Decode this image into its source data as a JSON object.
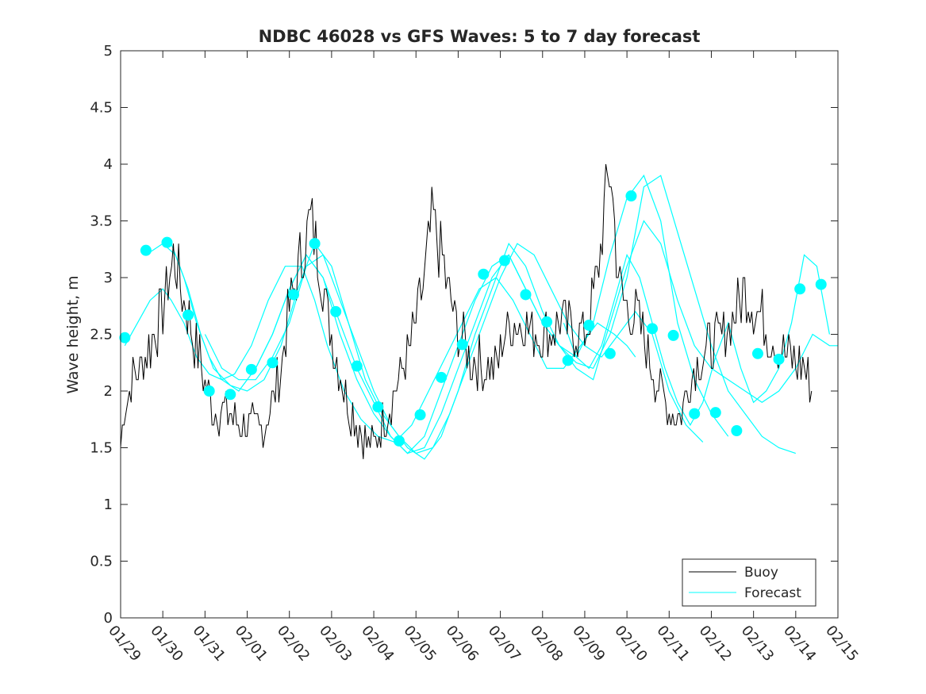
{
  "chart_data": {
    "type": "line",
    "title": "NDBC 46028 vs GFS Waves: 5 to 7 day forecast",
    "xlabel": "",
    "ylabel": "Wave height, m",
    "xlim": [
      0,
      17
    ],
    "ylim": [
      0,
      5
    ],
    "x_ticks": [
      "01/29",
      "01/30",
      "01/31",
      "02/01",
      "02/02",
      "02/03",
      "02/04",
      "02/05",
      "02/06",
      "02/07",
      "02/08",
      "02/09",
      "02/10",
      "02/11",
      "02/12",
      "02/13",
      "02/14",
      "02/15"
    ],
    "y_ticks": [
      "0",
      "0.5",
      "1",
      "1.5",
      "2",
      "2.5",
      "3",
      "3.5",
      "4",
      "4.5",
      "5"
    ],
    "legend": {
      "position": "bottom-right",
      "entries": [
        "Buoy",
        "Forecast"
      ]
    },
    "colors": {
      "buoy": "#000000",
      "forecast": "#00ffff",
      "axis": "#262626"
    },
    "buoy_anchors": {
      "x": [
        0,
        0.1,
        0.3,
        0.6,
        0.9,
        1.1,
        1.25,
        1.45,
        1.7,
        2.0,
        2.2,
        2.5,
        2.8,
        3.0,
        3.2,
        3.4,
        3.6,
        3.8,
        4.0,
        4.3,
        4.5,
        4.7,
        4.9,
        5.1,
        5.3,
        5.5,
        5.8,
        6.0,
        6.3,
        6.6,
        6.8,
        7.0,
        7.2,
        7.4,
        7.6,
        7.8,
        8.0,
        8.3,
        8.6,
        8.9,
        9.1,
        9.3,
        9.55,
        9.8,
        10.1,
        10.4,
        10.7,
        11.0,
        11.3,
        11.6,
        11.8,
        12.0,
        12.3,
        12.6,
        12.9,
        13.1,
        13.3,
        13.5,
        13.6,
        13.8,
        14.0,
        14.3,
        14.6,
        14.8,
        15.1,
        15.4,
        15.6,
        15.9,
        16.2,
        16.4
      ],
      "y": [
        1.5,
        1.9,
        2.1,
        2.3,
        2.6,
        2.9,
        3.2,
        2.9,
        2.5,
        2.1,
        1.85,
        1.8,
        1.75,
        1.7,
        1.65,
        1.7,
        1.9,
        2.2,
        2.7,
        3.2,
        3.5,
        3.2,
        2.7,
        2.3,
        2.0,
        1.8,
        1.55,
        1.5,
        1.8,
        2.1,
        2.3,
        2.6,
        3.0,
        3.5,
        3.2,
        2.8,
        2.5,
        2.3,
        2.2,
        2.2,
        2.5,
        2.6,
        2.6,
        2.5,
        2.5,
        2.6,
        2.55,
        2.5,
        3.0,
        4.0,
        3.0,
        2.7,
        2.6,
        2.2,
        1.9,
        1.8,
        1.8,
        2.1,
        2.2,
        2.3,
        2.4,
        2.5,
        2.7,
        2.9,
        2.7,
        2.5,
        2.4,
        2.3,
        2.2,
        2.0
      ]
    },
    "forecast_lines": [
      {
        "x": [
          0.1,
          0.4,
          0.7,
          1.0,
          1.2,
          1.5,
          1.8,
          2.1,
          2.4,
          2.7,
          3.1,
          3.5,
          3.9,
          4.3,
          4.6,
          4.9,
          5.3,
          5.7,
          6.1,
          6.5,
          6.9,
          7.3,
          7.7,
          8.1,
          8.5,
          8.9,
          9.3,
          9.7,
          10.1,
          10.5,
          10.9,
          11.3,
          11.7,
          12.0,
          12.2
        ],
        "y": [
          2.4,
          2.6,
          2.8,
          2.9,
          2.8,
          2.6,
          2.3,
          2.15,
          2.1,
          2.15,
          2.4,
          2.8,
          3.1,
          3.1,
          2.8,
          2.4,
          2.0,
          1.75,
          1.6,
          1.55,
          1.7,
          2.0,
          2.3,
          2.6,
          2.9,
          3.0,
          2.8,
          2.5,
          2.2,
          2.2,
          2.4,
          2.6,
          2.5,
          2.4,
          2.3
        ]
      },
      {
        "x": [
          0.6,
          1.0,
          1.3,
          1.6,
          1.9,
          2.2,
          2.6,
          3.0,
          3.4,
          3.8,
          4.2,
          4.6,
          5.0,
          5.4,
          5.8,
          6.2,
          6.6,
          7.0,
          7.4,
          7.8,
          8.2,
          8.6,
          9.0,
          9.4,
          9.8,
          10.2,
          10.6,
          11.0,
          11.4,
          11.8,
          12.2,
          12.6,
          13.0,
          13.4,
          13.8
        ],
        "y": [
          3.2,
          3.3,
          3.2,
          2.9,
          2.5,
          2.2,
          2.05,
          2.0,
          2.1,
          2.4,
          2.9,
          3.3,
          3.1,
          2.6,
          2.1,
          1.8,
          1.6,
          1.45,
          1.5,
          1.8,
          2.2,
          2.6,
          3.0,
          3.3,
          3.2,
          2.9,
          2.6,
          2.4,
          2.3,
          2.5,
          2.7,
          2.5,
          2.0,
          1.7,
          1.55
        ]
      },
      {
        "x": [
          1.2,
          1.5,
          1.8,
          2.1,
          2.4,
          2.8,
          3.2,
          3.6,
          4.0,
          4.4,
          4.8,
          5.2,
          5.6,
          6.0,
          6.4,
          6.8,
          7.2,
          7.6,
          8.0,
          8.4,
          8.8,
          9.2,
          9.6,
          10.0,
          10.4,
          10.8,
          11.2,
          11.6,
          12.0,
          12.4,
          12.8,
          13.2,
          13.6,
          14.0,
          14.4
        ],
        "y": [
          3.3,
          3.0,
          2.6,
          2.3,
          2.1,
          2.0,
          2.2,
          2.5,
          2.9,
          3.2,
          3.0,
          2.5,
          2.1,
          1.8,
          1.6,
          1.45,
          1.6,
          2.0,
          2.4,
          2.8,
          3.1,
          3.2,
          2.9,
          2.6,
          2.4,
          2.3,
          2.6,
          3.2,
          3.7,
          3.9,
          3.5,
          2.6,
          2.1,
          1.8,
          1.6
        ]
      },
      {
        "x": [
          2.0,
          2.4,
          2.8,
          3.2,
          3.6,
          4.0,
          4.4,
          4.8,
          5.2,
          5.6,
          6.0,
          6.4,
          6.8,
          7.2,
          7.6,
          8.0,
          8.4,
          8.8,
          9.2,
          9.6,
          10.0,
          10.4,
          10.8,
          11.2,
          11.6,
          12.0,
          12.4,
          12.8,
          13.2,
          13.6,
          14.0,
          14.4,
          14.8,
          15.2,
          15.6,
          16.0
        ],
        "y": [
          2.5,
          2.2,
          2.1,
          2.1,
          2.3,
          2.6,
          3.1,
          3.2,
          2.8,
          2.4,
          2.0,
          1.7,
          1.5,
          1.4,
          1.6,
          2.0,
          2.5,
          2.9,
          3.3,
          3.1,
          2.7,
          2.4,
          2.25,
          2.2,
          2.5,
          3.0,
          3.8,
          3.9,
          3.4,
          2.9,
          2.4,
          2.0,
          1.8,
          1.6,
          1.5,
          1.45
        ]
      },
      {
        "x": [
          3.2,
          3.6,
          4.0,
          4.4,
          4.8,
          5.2,
          5.6,
          6.0,
          6.4,
          6.8,
          7.2,
          7.6,
          8.0,
          8.4,
          8.8,
          9.2,
          9.6,
          10.0,
          10.4,
          10.8,
          11.2,
          11.6,
          12.0,
          12.4,
          12.8,
          13.2,
          13.6,
          14.0,
          14.4,
          14.8,
          15.2,
          15.6,
          16.0,
          16.4,
          16.8,
          17.0
        ],
        "y": [
          2.2,
          2.5,
          2.9,
          3.2,
          3.0,
          2.6,
          2.2,
          1.9,
          1.6,
          1.45,
          1.5,
          1.8,
          2.2,
          2.6,
          3.0,
          3.2,
          2.9,
          2.6,
          2.4,
          2.2,
          2.1,
          2.6,
          3.1,
          3.5,
          3.3,
          2.8,
          2.4,
          2.2,
          2.1,
          2.0,
          1.9,
          2.0,
          2.2,
          2.5,
          2.4,
          2.4
        ]
      },
      {
        "x": [
          10.5,
          10.8,
          11.1,
          11.4,
          11.7,
          12.0,
          12.3,
          12.6,
          12.9,
          13.2,
          13.5,
          13.8,
          14.1,
          14.4,
          14.7,
          15.0,
          15.3,
          15.6,
          15.9,
          16.2,
          16.5,
          16.8
        ],
        "y": [
          2.6,
          2.3,
          2.2,
          2.4,
          2.8,
          3.2,
          3.0,
          2.6,
          2.2,
          1.9,
          1.7,
          1.9,
          2.3,
          2.6,
          2.2,
          1.9,
          2.0,
          2.2,
          2.6,
          3.2,
          3.1,
          2.5
        ]
      }
    ],
    "forecast_points": {
      "x": [
        0.1,
        0.6,
        1.1,
        1.6,
        2.1,
        2.6,
        3.1,
        3.6,
        4.1,
        4.6,
        5.1,
        5.6,
        6.1,
        6.6,
        7.1,
        7.6,
        8.1,
        8.6,
        9.1,
        9.6,
        10.1,
        10.6,
        11.1,
        11.6,
        12.1,
        12.6,
        13.1,
        13.6,
        14.1,
        14.6,
        15.1,
        15.6,
        16.1,
        16.6
      ],
      "y": [
        2.47,
        3.24,
        3.31,
        2.67,
        2.0,
        1.97,
        2.19,
        2.25,
        2.85,
        3.3,
        2.7,
        2.22,
        1.86,
        1.56,
        1.79,
        2.12,
        2.41,
        3.03,
        3.15,
        2.85,
        2.61,
        2.27,
        2.58,
        2.33,
        3.72,
        2.55,
        2.49,
        1.8,
        1.81,
        1.65,
        2.33,
        2.28,
        2.9,
        2.94
      ]
    }
  }
}
